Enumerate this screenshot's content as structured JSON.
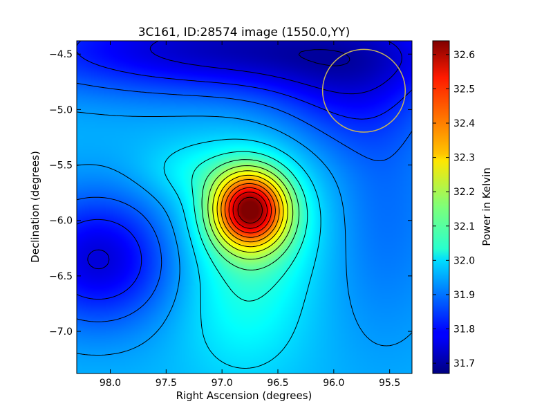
{
  "chart_data": {
    "type": "heatmap",
    "title": "3C161, ID:28574 image (1550.0,YY)",
    "xlabel": "Right Ascension (degrees)",
    "ylabel": "Declination (degrees)",
    "colorbar_label": "Power in Kelvin",
    "xlim": [
      98.3,
      95.3
    ],
    "ylim": [
      -7.38,
      -4.38
    ],
    "x_ticks": [
      98.0,
      97.5,
      97.0,
      96.5,
      96.0,
      95.5
    ],
    "x_tick_labels": [
      "98.0",
      "97.5",
      "97.0",
      "96.5",
      "96.0",
      "95.5"
    ],
    "y_ticks": [
      -4.5,
      -5.0,
      -5.5,
      -6.0,
      -6.5,
      -7.0
    ],
    "y_tick_labels": [
      "−4.5",
      "−5.0",
      "−5.5",
      "−6.0",
      "−6.5",
      "−7.0"
    ],
    "colorbar_range": [
      31.67,
      32.64
    ],
    "colorbar_ticks": [
      31.7,
      31.8,
      31.9,
      32.0,
      32.1,
      32.2,
      32.3,
      32.4,
      32.5,
      32.6
    ],
    "colorbar_tick_labels": [
      "31.7",
      "31.8",
      "31.9",
      "32.0",
      "32.1",
      "32.2",
      "32.3",
      "32.4",
      "32.5",
      "32.6"
    ],
    "colormap": "jet",
    "peak": {
      "ra": 96.75,
      "dec": -5.9,
      "value": 32.64
    },
    "contour_line_color": "#000000",
    "beam_circle": {
      "ra": 95.73,
      "dec": -4.83,
      "radius_deg": 0.37,
      "color": "#c8b45a"
    },
    "grid": false
  }
}
